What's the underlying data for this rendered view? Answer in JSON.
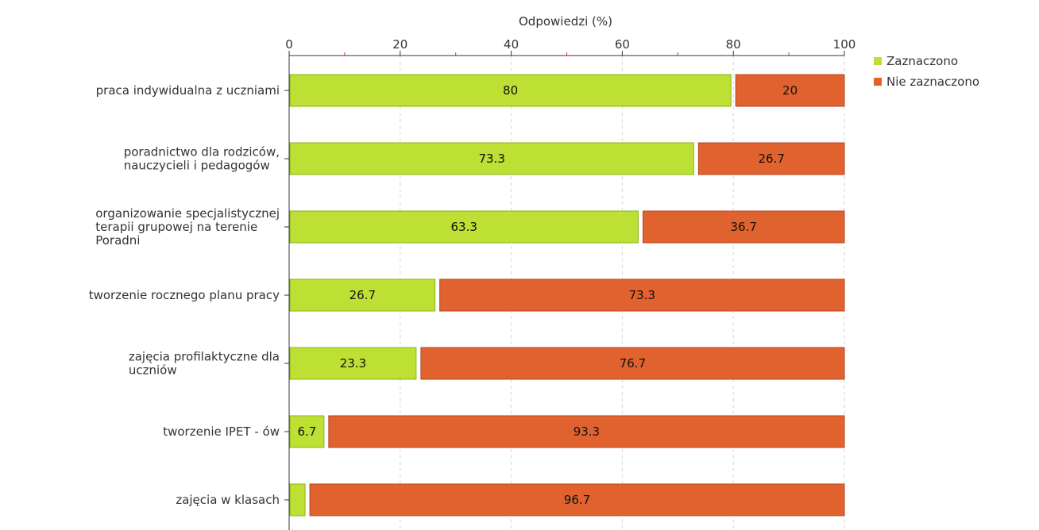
{
  "chart_data": {
    "type": "bar",
    "orientation": "horizontal",
    "stacked": true,
    "xlabel": "Odpowiedzi (%)",
    "xlim": [
      0,
      100
    ],
    "x_ticks": [
      0,
      20,
      40,
      60,
      80,
      100
    ],
    "grid": true,
    "legend_position": "top-right",
    "categories": [
      [
        "praca indywidualna z uczniami"
      ],
      [
        "poradnictwo dla rodziców,",
        "nauczycieli i pedagogów"
      ],
      [
        "organizowanie specjalistycznej",
        "terapii grupowej na terenie",
        "Poradni"
      ],
      [
        "tworzenie rocznego planu pracy"
      ],
      [
        "zajęcia profilaktyczne dla",
        "uczniów"
      ],
      [
        "tworzenie IPET - ów"
      ],
      [
        "zajęcia w klasach"
      ]
    ],
    "series": [
      {
        "name": "Zaznaczono",
        "color": "#bedf33",
        "stroke": "#8bb61a",
        "values": [
          80,
          73.3,
          63.3,
          26.7,
          23.3,
          6.7,
          3.3
        ],
        "labels": [
          "80",
          "73.3",
          "63.3",
          "26.7",
          "23.3",
          "6.7",
          ""
        ]
      },
      {
        "name": "Nie zaznaczono",
        "color": "#e0622f",
        "stroke": "#b8461c",
        "values": [
          20,
          26.7,
          36.7,
          73.3,
          76.7,
          93.3,
          96.7
        ],
        "labels": [
          "20",
          "26.7",
          "36.7",
          "73.3",
          "76.7",
          "93.3",
          "96.7"
        ]
      }
    ]
  }
}
